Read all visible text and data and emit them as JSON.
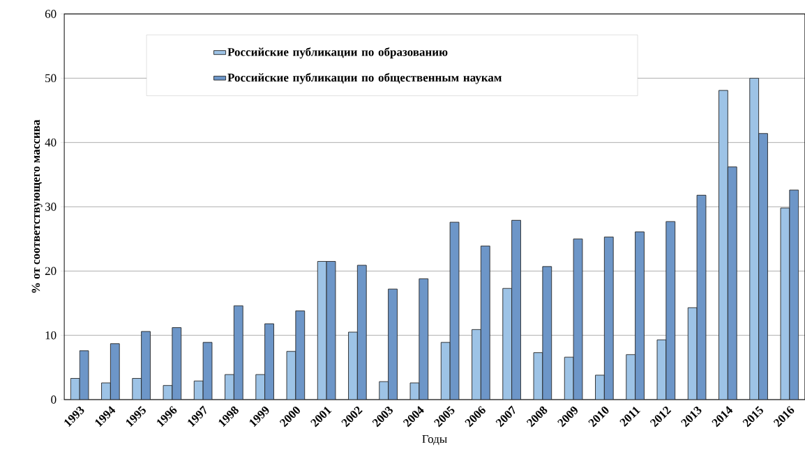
{
  "chart_data": {
    "type": "bar",
    "xlabel": "Годы",
    "ylabel": "% от соответствующего массива",
    "categories": [
      "1993",
      "1994",
      "1995",
      "1996",
      "1997",
      "1998",
      "1999",
      "2000",
      "2001",
      "2002",
      "2003",
      "2004",
      "2005",
      "2006",
      "2007",
      "2008",
      "2009",
      "2010",
      "2011",
      "2012",
      "2013",
      "2014",
      "2015",
      "2016"
    ],
    "series": [
      {
        "name": "Российские публикации по образованию",
        "color": "#9dc3e6",
        "values": [
          3.3,
          2.6,
          3.3,
          2.2,
          2.9,
          3.9,
          3.9,
          7.5,
          21.5,
          10.5,
          2.8,
          2.6,
          8.9,
          10.9,
          17.3,
          7.3,
          6.6,
          3.8,
          7.0,
          9.3,
          14.3,
          48.1,
          50.0,
          29.8
        ]
      },
      {
        "name": "Российские публикации по общественным наукам",
        "color": "#6d96c8",
        "values": [
          7.6,
          8.7,
          10.6,
          11.2,
          8.9,
          14.6,
          11.8,
          13.8,
          21.5,
          20.9,
          17.2,
          18.8,
          27.6,
          23.9,
          27.9,
          20.7,
          25.0,
          25.3,
          26.1,
          27.7,
          31.8,
          36.2,
          41.4,
          32.6
        ]
      }
    ],
    "ylim": [
      0,
      60
    ],
    "yticks": [
      0,
      10,
      20,
      30,
      40,
      50,
      60
    ],
    "grid": "y",
    "legend": "top"
  }
}
